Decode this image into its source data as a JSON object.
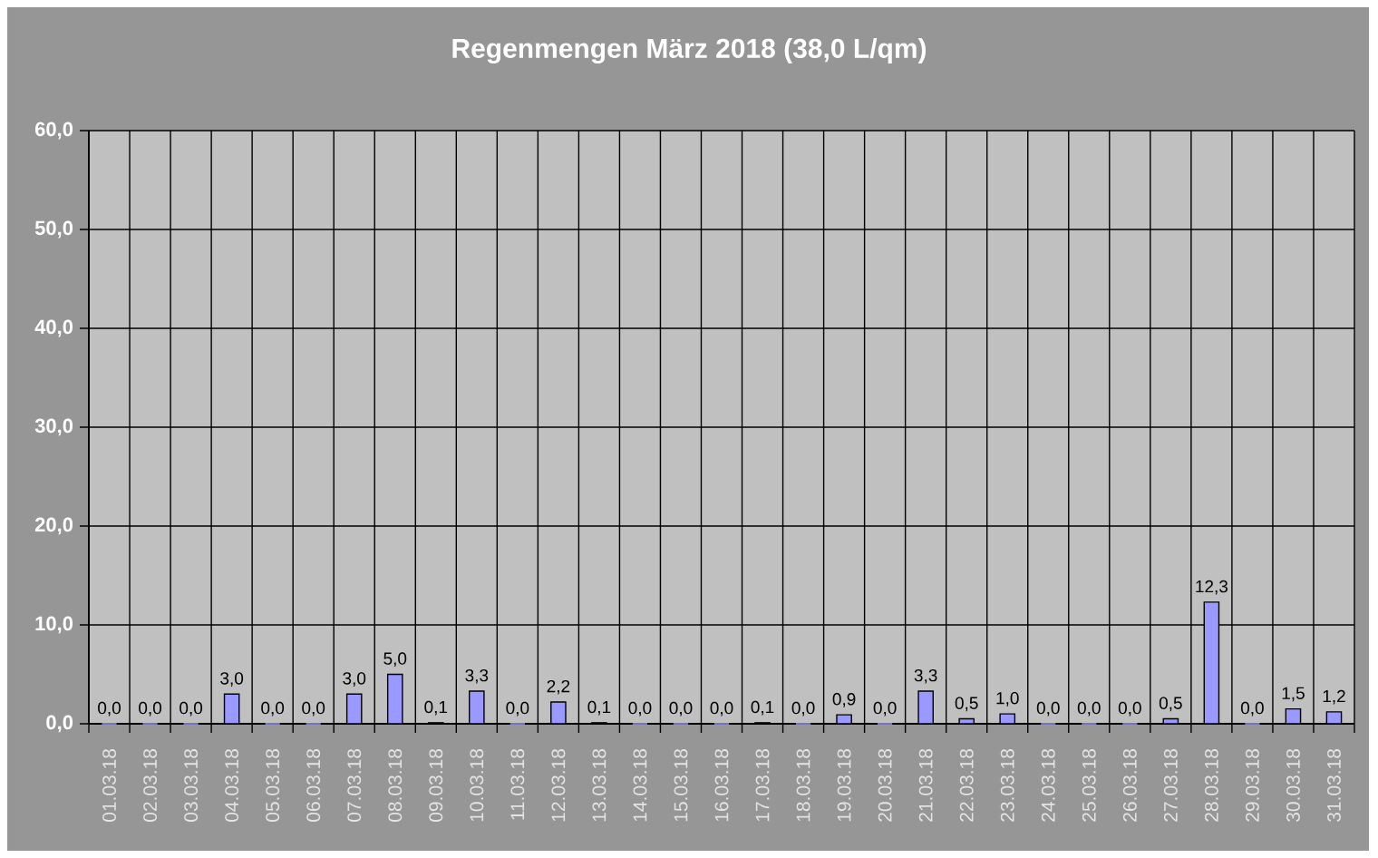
{
  "chart_data": {
    "type": "bar",
    "title": "Regenmengen März 2018 (38,0 L/qm)",
    "categories": [
      "01.03.18",
      "02.03.18",
      "03.03.18",
      "04.03.18",
      "05.03.18",
      "06.03.18",
      "07.03.18",
      "08.03.18",
      "09.03.18",
      "10.03.18",
      "11.03.18",
      "12.03.18",
      "13.03.18",
      "14.03.18",
      "15.03.18",
      "16.03.18",
      "17.03.18",
      "18.03.18",
      "19.03.18",
      "20.03.18",
      "21.03.18",
      "22.03.18",
      "23.03.18",
      "24.03.18",
      "25.03.18",
      "26.03.18",
      "27.03.18",
      "28.03.18",
      "29.03.18",
      "30.03.18",
      "31.03.18"
    ],
    "values": [
      0.0,
      0.0,
      0.0,
      3.0,
      0.0,
      0.0,
      3.0,
      5.0,
      0.1,
      3.3,
      0.0,
      2.2,
      0.1,
      0.0,
      0.0,
      0.0,
      0.1,
      0.0,
      0.9,
      0.0,
      3.3,
      0.5,
      1.0,
      0.0,
      0.0,
      0.0,
      0.5,
      12.3,
      0.0,
      1.5,
      1.2
    ],
    "value_labels": [
      "0,0",
      "0,0",
      "0,0",
      "3,0",
      "0,0",
      "0,0",
      "3,0",
      "5,0",
      "0,1",
      "3,3",
      "0,0",
      "2,2",
      "0,1",
      "0,0",
      "0,0",
      "0,0",
      "0,1",
      "0,0",
      "0,9",
      "0,0",
      "3,3",
      "0,5",
      "1,0",
      "0,0",
      "0,0",
      "0,0",
      "0,5",
      "12,3",
      "0,0",
      "1,5",
      "1,2"
    ],
    "color": "#9999ff",
    "ylim": [
      0,
      60
    ],
    "yticks": [
      {
        "value": 0,
        "label": "0,0"
      },
      {
        "value": 10,
        "label": "10,0"
      },
      {
        "value": 20,
        "label": "20,0"
      },
      {
        "value": 30,
        "label": "30,0"
      },
      {
        "value": 40,
        "label": "40,0"
      },
      {
        "value": 50,
        "label": "50,0"
      },
      {
        "value": 60,
        "label": "60,0"
      }
    ],
    "grid": true
  }
}
